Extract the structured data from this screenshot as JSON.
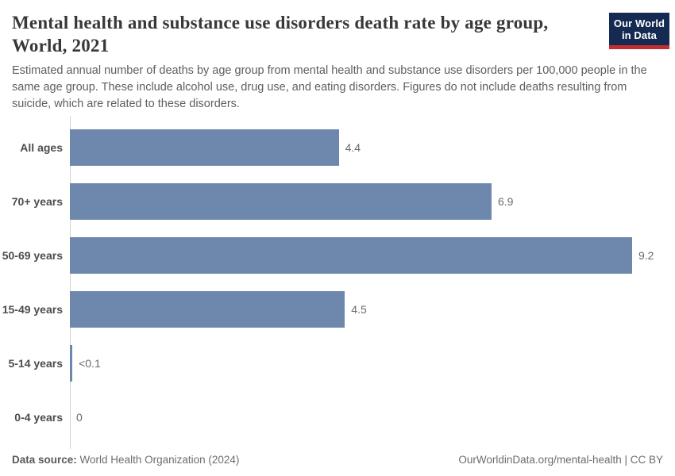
{
  "header": {
    "title_lines": [
      "Mental health and substance use disorders death rate by age group,",
      "World, 2021"
    ],
    "subtitle": "Estimated annual number of deaths by age group from mental health and substance use disorders per 100,000 people in the same age group. These include alcohol use, drug use, and eating disorders. Figures do not include deaths resulting from suicide, which are related to these disorders."
  },
  "logo": {
    "line1": "Our World",
    "line2": "in Data",
    "bg_color": "#152a52",
    "stripe_color": "#c32e31"
  },
  "chart_data": {
    "type": "bar",
    "orientation": "horizontal",
    "title": "Mental health and substance use disorders death rate by age group, World, 2021",
    "categories": [
      "All ages",
      "70+ years",
      "50-69 years",
      "15-49 years",
      "5-14 years",
      "0-4 years"
    ],
    "values": [
      4.4,
      6.9,
      9.2,
      4.5,
      0.04,
      0
    ],
    "value_labels": [
      "4.4",
      "6.9",
      "9.2",
      "4.5",
      "<0.1",
      "0"
    ],
    "xlim": [
      0,
      9.2
    ],
    "unit": "deaths per 100,000 people",
    "bar_color": "#6d87ad",
    "grid": false,
    "legend": false
  },
  "footer": {
    "datasource_label": "Data source:",
    "datasource_text": "World Health Organization (2024)",
    "credit": "OurWorldinData.org/mental-health | CC BY"
  }
}
